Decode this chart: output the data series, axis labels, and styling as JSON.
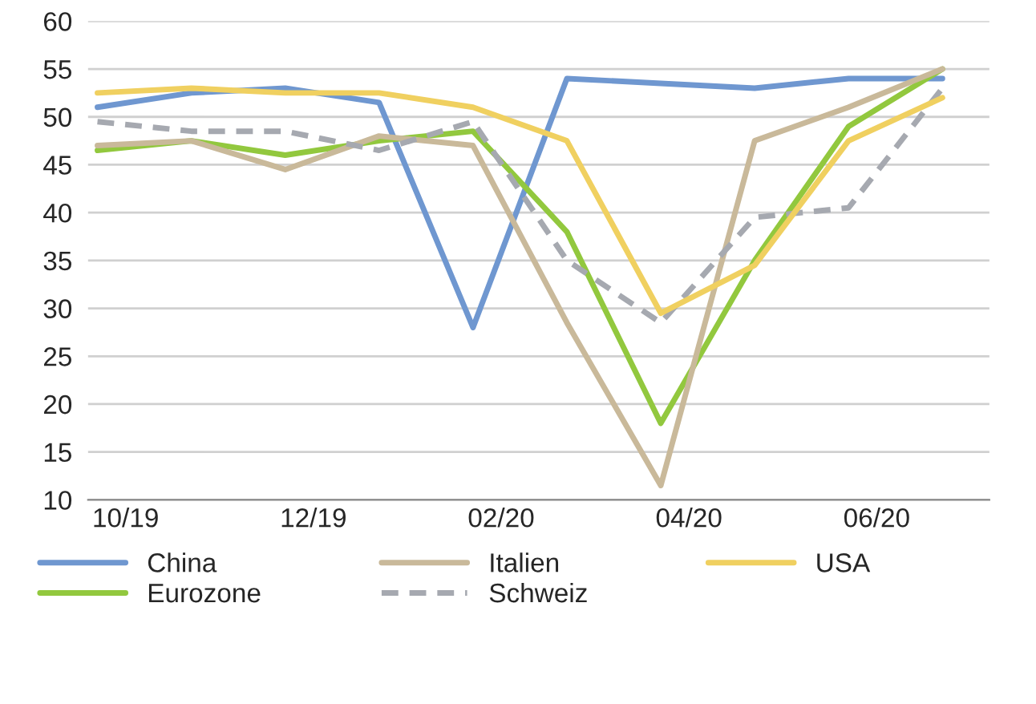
{
  "chart_data": {
    "type": "line",
    "categories": [
      "10/19",
      null,
      "12/19",
      null,
      "02/20",
      null,
      "04/20",
      null,
      "06/20",
      null
    ],
    "series": [
      {
        "name": "China",
        "color": "#6f97d0",
        "values": [
          51,
          52.5,
          53,
          51.5,
          28,
          54,
          53.5,
          53,
          54,
          54
        ]
      },
      {
        "name": "Eurozone",
        "color": "#92c83e",
        "values": [
          46.5,
          47.5,
          46,
          47.5,
          48.5,
          38,
          18,
          35,
          49,
          55
        ]
      },
      {
        "name": "Italien",
        "color": "#c9b99a",
        "values": [
          47,
          47.5,
          44.5,
          48,
          47,
          28.5,
          11.5,
          47.5,
          51,
          55
        ]
      },
      {
        "name": "Schweiz",
        "color": "#a6a9b0",
        "line_style": "dashed",
        "values": [
          49.5,
          48.5,
          48.5,
          46.5,
          49.5,
          35,
          28.5,
          39.5,
          40.5,
          53
        ]
      },
      {
        "name": "USA",
        "color": "#f0d060",
        "values": [
          52.5,
          53,
          52.5,
          52.5,
          51,
          47.5,
          29.5,
          34.5,
          47.5,
          52
        ]
      }
    ],
    "ylim": [
      10,
      60
    ],
    "yticks": [
      10,
      15,
      20,
      25,
      30,
      35,
      40,
      45,
      50,
      55,
      60
    ],
    "grid": "y",
    "legend": "bottom",
    "marker": "none"
  }
}
